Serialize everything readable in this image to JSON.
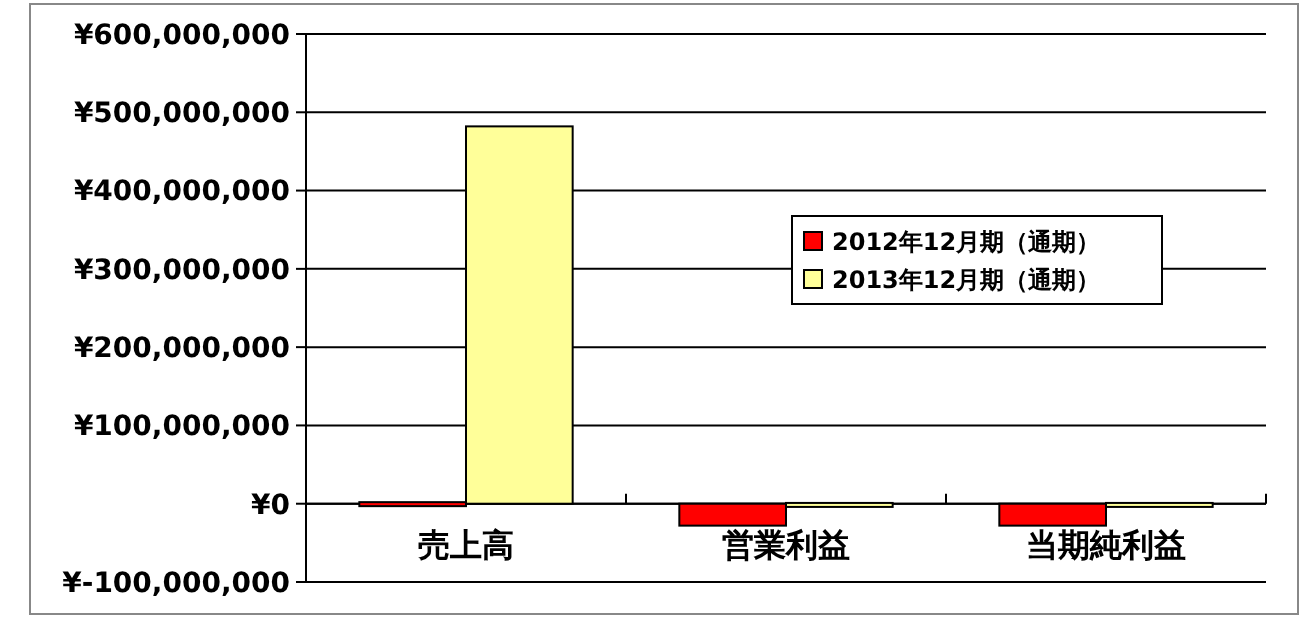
{
  "chart_data": {
    "type": "bar",
    "categories": [
      "売上高",
      "営業利益",
      "当期純利益"
    ],
    "series": [
      {
        "name": "2012年12月期（通期）",
        "color": "#ff0000",
        "values": [
          2000000,
          -28000000,
          -28000000
        ]
      },
      {
        "name": "2013年12月期（通期）",
        "color": "#ffff99",
        "values": [
          482000000,
          1000000,
          1000000
        ]
      }
    ],
    "ylim": [
      -100000000,
      600000000
    ],
    "yticks": [
      {
        "value": -100000000,
        "label": "¥-100,000,000"
      },
      {
        "value": 0,
        "label": "¥0"
      },
      {
        "value": 100000000,
        "label": "¥100,000,000"
      },
      {
        "value": 200000000,
        "label": "¥200,000,000"
      },
      {
        "value": 300000000,
        "label": "¥300,000,000"
      },
      {
        "value": 400000000,
        "label": "¥400,000,000"
      },
      {
        "value": 500000000,
        "label": "¥500,000,000"
      },
      {
        "value": 600000000,
        "label": "¥600,000,000"
      }
    ],
    "grid": "y",
    "legend": "top right"
  }
}
